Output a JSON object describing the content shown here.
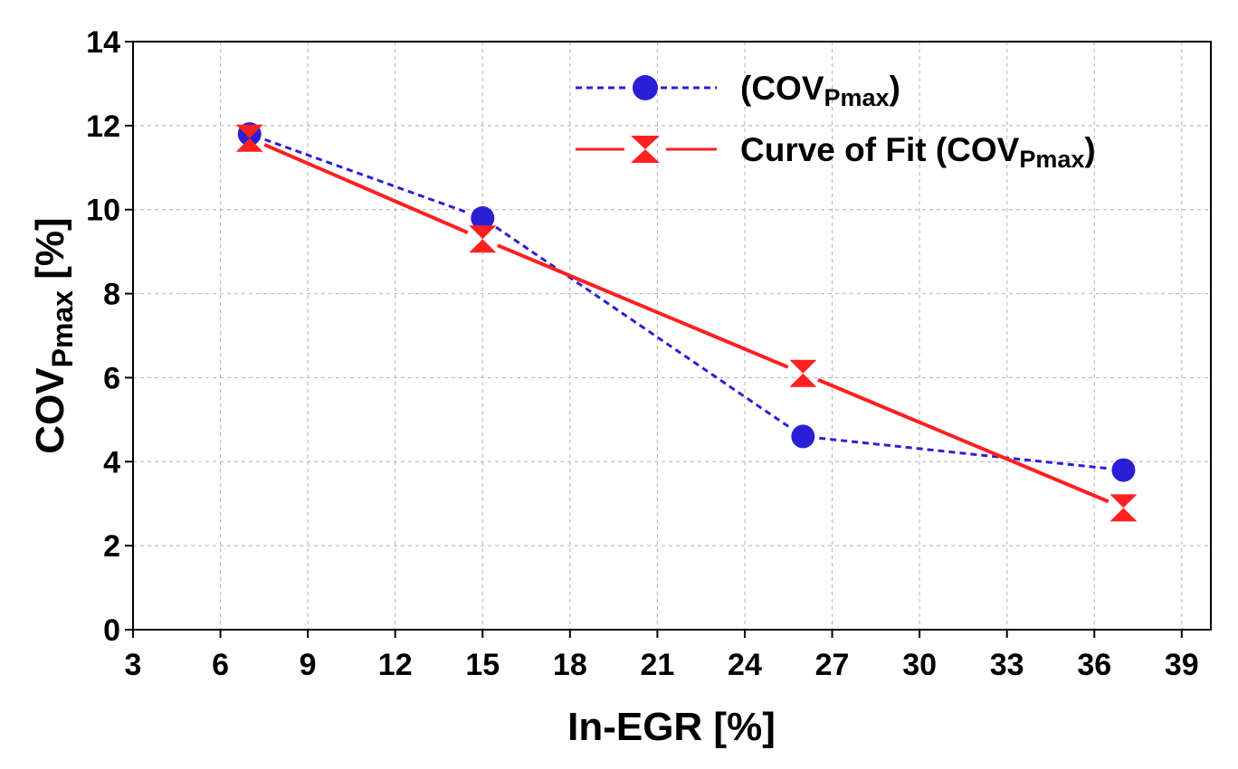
{
  "chart_data": {
    "type": "line",
    "title": "",
    "xlabel": "In-EGR [%]",
    "ylabel": {
      "main": "COV",
      "sub": "Pmax",
      "suffix": " [%]"
    },
    "xlim": [
      3,
      40
    ],
    "ylim": [
      0,
      14
    ],
    "xticks": [
      3,
      6,
      9,
      12,
      15,
      18,
      21,
      24,
      27,
      30,
      33,
      36,
      39
    ],
    "yticks": [
      0,
      2,
      4,
      6,
      8,
      10,
      12,
      14
    ],
    "grid": true,
    "legend_position": "top-right",
    "series": [
      {
        "name": "(COVPmax)",
        "legend": {
          "prefix": "(COV",
          "sub": "Pmax",
          "suffix": ")"
        },
        "style": "dashed",
        "marker": "circle",
        "color": "#2a1fd6",
        "x": [
          7,
          15,
          26,
          37
        ],
        "y": [
          11.8,
          9.8,
          4.6,
          3.8
        ]
      },
      {
        "name": "Curve of Fit (COVPmax)",
        "legend": {
          "prefix": "Curve of Fit (COV",
          "sub": "Pmax",
          "suffix": ")"
        },
        "style": "solid",
        "marker": "hourglass",
        "color": "#ff2020",
        "x": [
          7,
          15,
          26,
          37
        ],
        "y": [
          11.7,
          9.3,
          6.1,
          2.9
        ]
      }
    ]
  }
}
